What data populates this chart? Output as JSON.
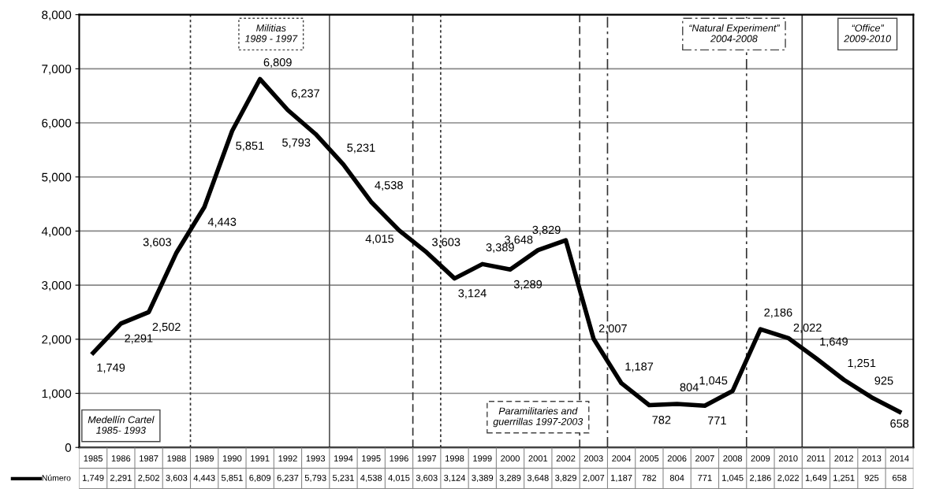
{
  "chart_data": {
    "type": "line",
    "x": [
      1985,
      1986,
      1987,
      1988,
      1989,
      1990,
      1991,
      1992,
      1993,
      1994,
      1995,
      1996,
      1997,
      1998,
      1999,
      2000,
      2001,
      2002,
      2003,
      2004,
      2005,
      2006,
      2007,
      2008,
      2009,
      2010,
      2011,
      2012,
      2013,
      2014
    ],
    "xlim": [
      1984.5,
      2014.5
    ],
    "xticks": [
      1985,
      1986,
      1987,
      1988,
      1989,
      1990,
      1991,
      1992,
      1993,
      1994,
      1995,
      1996,
      1997,
      1998,
      1999,
      2000,
      2001,
      2002,
      2003,
      2004,
      2005,
      2006,
      2007,
      2008,
      2009,
      2010,
      2011,
      2012,
      2013,
      2014
    ],
    "series": [
      {
        "name": "Número",
        "color": "#000000",
        "values": [
          1749,
          2291,
          2502,
          3603,
          4443,
          5851,
          6809,
          6237,
          5793,
          5231,
          4538,
          4015,
          3603,
          3124,
          3389,
          3289,
          3648,
          3829,
          2007,
          1187,
          782,
          804,
          771,
          1045,
          2186,
          2022,
          1649,
          1251,
          925,
          658
        ],
        "value_labels": [
          "1,749",
          "2,291",
          "2,502",
          "3,603",
          "4,443",
          "5,851",
          "6,809",
          "6,237",
          "5,793",
          "5,231",
          "4,538",
          "4,015",
          "3,603",
          "3,124",
          "3,389",
          "3,289",
          "3,648",
          "3,829",
          "2,007",
          "1,187",
          "782",
          "804",
          "771",
          "1,045",
          "2,186",
          "2,022",
          "1,649",
          "1,251",
          "925",
          "658"
        ]
      }
    ],
    "ylim": [
      0,
      8000
    ],
    "yticks": [
      {
        "value": 0,
        "label": "0"
      },
      {
        "value": 1000,
        "label": "1,000"
      },
      {
        "value": 2000,
        "label": "2,000"
      },
      {
        "value": 3000,
        "label": "3,000"
      },
      {
        "value": 4000,
        "label": "4,000"
      },
      {
        "value": 5000,
        "label": "5,000"
      },
      {
        "value": 6000,
        "label": "6,000"
      },
      {
        "value": 7000,
        "label": "7,000"
      },
      {
        "value": 8000,
        "label": "8,000"
      }
    ],
    "grid": "y",
    "marker": "none",
    "line_style": "solid",
    "ref_lines": [
      {
        "axis": "x",
        "value": 1988.5,
        "line_style": "dotted",
        "color": "#333333"
      },
      {
        "axis": "x",
        "value": 1993.5,
        "line_style": "solid",
        "color": "#555555"
      },
      {
        "axis": "x",
        "value": 1996.5,
        "line_style": "dashed",
        "color": "#333333"
      },
      {
        "axis": "x",
        "value": 1997.5,
        "line_style": "dotted",
        "color": "#333333"
      },
      {
        "axis": "x",
        "value": 2002.5,
        "line_style": "dashed",
        "color": "#333333"
      },
      {
        "axis": "x",
        "value": 2003.5,
        "line_style": "dashdot",
        "color": "#333333"
      },
      {
        "axis": "x",
        "value": 2008.5,
        "line_style": "dashdot",
        "color": "#333333"
      },
      {
        "axis": "x",
        "value": 2010.5,
        "line_style": "solid",
        "color": "#333333"
      }
    ],
    "annotations": [
      "Medellín Cartel\n1985- 1993",
      "Militias\n1989 - 1997",
      "Paramilitaries and\nguerrillas 1997-2003",
      "“Natural Experiment”\n2004-2008",
      "“Office”\n2009-2010"
    ]
  }
}
